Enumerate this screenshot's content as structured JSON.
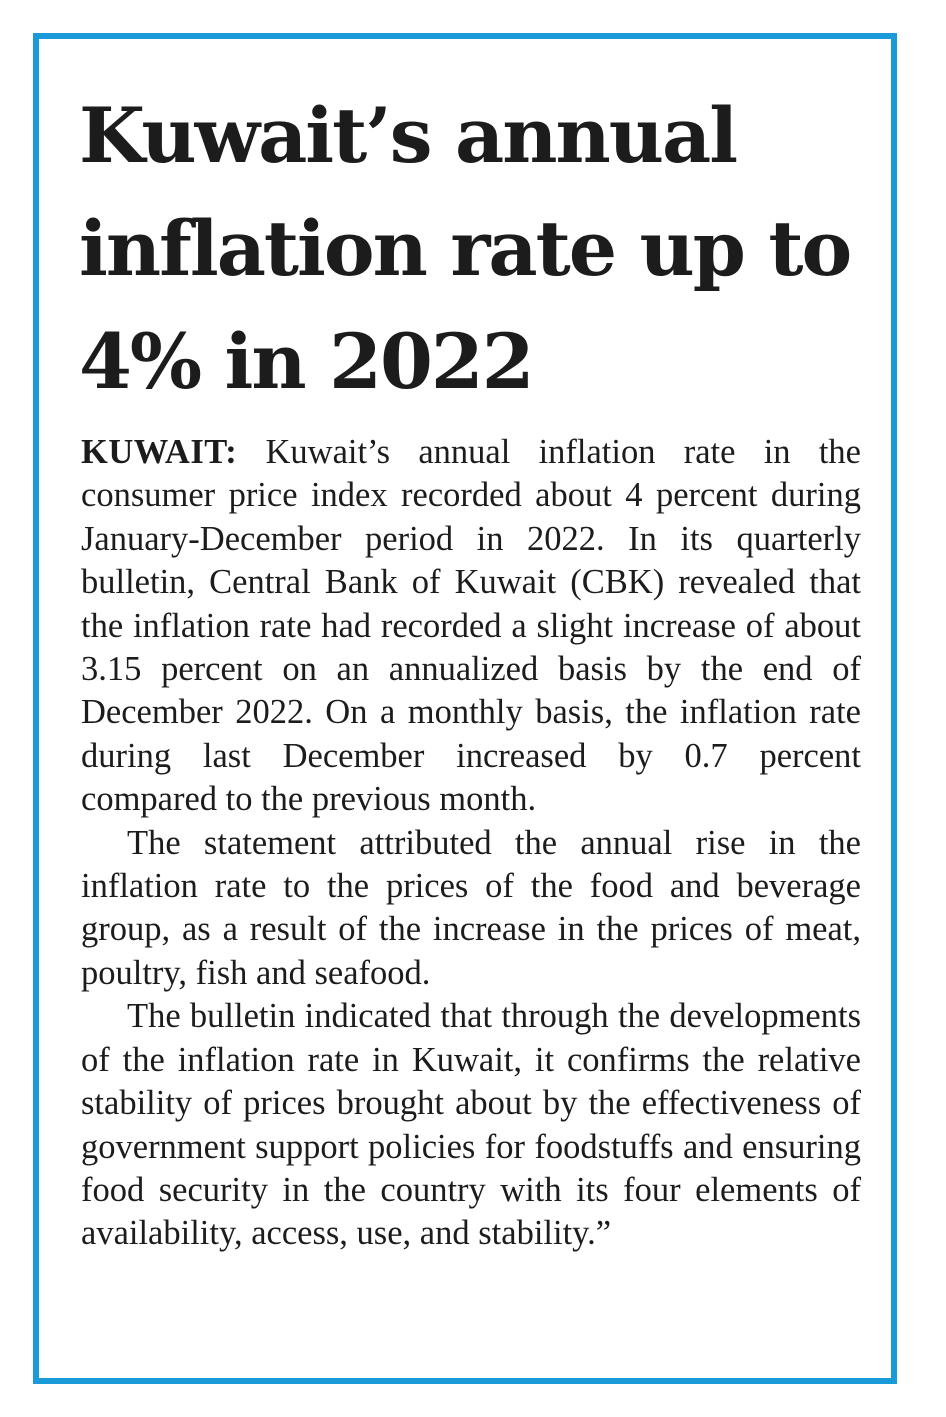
{
  "article": {
    "headline": "Kuwait’s annual inflation rate up to 4% in 2022",
    "dateline": "KUWAIT:",
    "paragraphs": [
      " Kuwait’s annual inflation rate in the consumer price index recorded about 4 per­cent during January-December period in 2022. In its quarterly bulletin, Central Bank of Kuwait (CBK) revealed that the inflation rate had recorded a slight increase of about 3.15 per­cent on an annualized basis by the end of December 2022. On a monthly basis, the infla­tion rate during last December increased by 0.7 percent compared to the previous month.",
      "The statement attributed the annual rise in the inflation rate to the prices of the food and beverage group, as a result of the increase in the prices of meat, poultry, fish and seafood.",
      "The bulletin indicated that through the developments of the inflation rate in Kuwait, it confirms the relative stability of prices brought about by the effectiveness of government sup­port policies for foodstuffs and ensuring food security in the country with its four elements of availability, access, use, and stability.”"
    ]
  },
  "colors": {
    "border": "#1a9ad8",
    "text": "#1c1c1c",
    "background": "#ffffff"
  }
}
